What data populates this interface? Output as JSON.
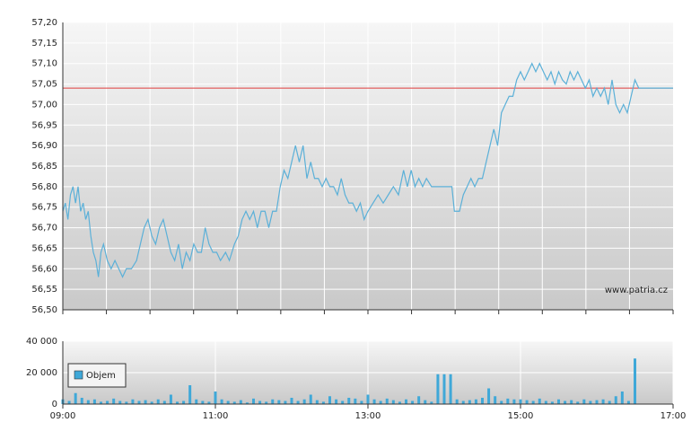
{
  "chart_data": [
    {
      "type": "line",
      "xlim": [
        "09:00",
        "17:00"
      ],
      "xgrid_divisions": 14,
      "ylim": [
        56.5,
        57.2
      ],
      "yticks": [
        {
          "value": 56.5,
          "label": "56,50"
        },
        {
          "value": 56.55,
          "label": "56,55"
        },
        {
          "value": 56.6,
          "label": "56,60"
        },
        {
          "value": 56.65,
          "label": "56,65"
        },
        {
          "value": 56.7,
          "label": "56,70"
        },
        {
          "value": 56.75,
          "label": "56,75"
        },
        {
          "value": 56.8,
          "label": "56,80"
        },
        {
          "value": 56.85,
          "label": "56,85"
        },
        {
          "value": 56.9,
          "label": "56,90"
        },
        {
          "value": 56.95,
          "label": "56,95"
        },
        {
          "value": 57.0,
          "label": "57,00"
        },
        {
          "value": 57.05,
          "label": "57,05"
        },
        {
          "value": 57.1,
          "label": "57,10"
        },
        {
          "value": 57.15,
          "label": "57,15"
        },
        {
          "value": 57.2,
          "label": "57,20"
        }
      ],
      "grid": true,
      "reference_line": {
        "value": 57.04,
        "color": "#e03c3c"
      },
      "watermark": "www.patria.cz",
      "series": [
        {
          "color": "#5bb0d8",
          "x": [
            "09:00",
            "09:02",
            "09:04",
            "09:06",
            "09:08",
            "09:10",
            "09:12",
            "09:14",
            "09:16",
            "09:18",
            "09:20",
            "09:22",
            "09:24",
            "09:26",
            "09:28",
            "09:30",
            "09:32",
            "09:35",
            "09:38",
            "09:41",
            "09:44",
            "09:47",
            "09:50",
            "09:54",
            "09:58",
            "10:01",
            "10:04",
            "10:07",
            "10:10",
            "10:13",
            "10:16",
            "10:19",
            "10:22",
            "10:25",
            "10:28",
            "10:31",
            "10:34",
            "10:37",
            "10:40",
            "10:43",
            "10:46",
            "10:49",
            "10:52",
            "10:55",
            "10:58",
            "11:01",
            "11:04",
            "11:08",
            "11:11",
            "11:15",
            "11:18",
            "11:21",
            "11:24",
            "11:27",
            "11:30",
            "11:33",
            "11:36",
            "11:39",
            "11:42",
            "11:45",
            "11:48",
            "11:51",
            "11:54",
            "11:57",
            "12:00",
            "12:03",
            "12:06",
            "12:09",
            "12:12",
            "12:15",
            "12:18",
            "12:21",
            "12:24",
            "12:27",
            "12:30",
            "12:33",
            "12:36",
            "12:39",
            "12:42",
            "12:45",
            "12:48",
            "12:51",
            "12:54",
            "12:57",
            "13:00",
            "13:04",
            "13:08",
            "13:12",
            "13:16",
            "13:20",
            "13:24",
            "13:28",
            "13:31",
            "13:34",
            "13:37",
            "13:40",
            "13:43",
            "13:46",
            "13:50",
            "13:54",
            "13:58",
            "14:02",
            "14:06",
            "14:08",
            "14:12",
            "14:15",
            "14:18",
            "14:21",
            "14:24",
            "14:27",
            "14:30",
            "14:33",
            "14:36",
            "14:39",
            "14:42",
            "14:45",
            "14:48",
            "14:51",
            "14:54",
            "14:57",
            "15:00",
            "15:03",
            "15:06",
            "15:09",
            "15:12",
            "15:15",
            "15:18",
            "15:21",
            "15:24",
            "15:27",
            "15:30",
            "15:33",
            "15:36",
            "15:39",
            "15:42",
            "15:45",
            "15:48",
            "15:51",
            "15:54",
            "15:57",
            "16:00",
            "16:03",
            "16:06",
            "16:09",
            "16:12",
            "16:15",
            "16:18",
            "16:21",
            "16:24",
            "16:27",
            "16:30",
            "16:33",
            "17:00"
          ],
          "values": [
            56.74,
            56.76,
            56.72,
            56.78,
            56.8,
            56.76,
            56.8,
            56.74,
            56.76,
            56.72,
            56.74,
            56.68,
            56.64,
            56.62,
            56.58,
            56.64,
            56.66,
            56.62,
            56.6,
            56.62,
            56.6,
            56.58,
            56.6,
            56.6,
            56.62,
            56.66,
            56.7,
            56.72,
            56.68,
            56.66,
            56.7,
            56.72,
            56.68,
            56.64,
            56.62,
            56.66,
            56.6,
            56.64,
            56.62,
            56.66,
            56.64,
            56.64,
            56.7,
            56.66,
            56.64,
            56.64,
            56.62,
            56.64,
            56.62,
            56.66,
            56.68,
            56.72,
            56.74,
            56.72,
            56.74,
            56.7,
            56.74,
            56.74,
            56.7,
            56.74,
            56.74,
            56.8,
            56.84,
            56.82,
            56.86,
            56.9,
            56.86,
            56.9,
            56.82,
            56.86,
            56.82,
            56.82,
            56.8,
            56.82,
            56.8,
            56.8,
            56.78,
            56.82,
            56.78,
            56.76,
            56.76,
            56.74,
            56.76,
            56.72,
            56.74,
            56.76,
            56.78,
            56.76,
            56.78,
            56.8,
            56.78,
            56.84,
            56.8,
            56.84,
            56.8,
            56.82,
            56.8,
            56.82,
            56.8,
            56.8,
            56.8,
            56.8,
            56.8,
            56.74,
            56.74,
            56.78,
            56.8,
            56.82,
            56.8,
            56.82,
            56.82,
            56.86,
            56.9,
            56.94,
            56.9,
            56.98,
            57.0,
            57.02,
            57.02,
            57.06,
            57.08,
            57.06,
            57.08,
            57.1,
            57.08,
            57.1,
            57.08,
            57.06,
            57.08,
            57.05,
            57.08,
            57.06,
            57.05,
            57.08,
            57.06,
            57.08,
            57.06,
            57.04,
            57.06,
            57.02,
            57.04,
            57.02,
            57.04,
            57.0,
            57.06,
            57.0,
            56.98,
            57.0,
            56.98,
            57.02,
            57.06,
            57.04,
            57.04
          ]
        }
      ]
    },
    {
      "type": "bar",
      "xlim": [
        "09:00",
        "17:00"
      ],
      "xticks": [
        "09:00",
        "11:00",
        "13:00",
        "15:00",
        "17:00"
      ],
      "ylim": [
        0,
        40000
      ],
      "yticks": [
        {
          "value": 0,
          "label": "0"
        },
        {
          "value": 20000,
          "label": "20 000"
        },
        {
          "value": 40000,
          "label": "40 000"
        }
      ],
      "grid": true,
      "legend": "upper left",
      "series": [
        {
          "name": "Objem",
          "color": "#3fa8d8",
          "x": [
            "09:00",
            "09:05",
            "09:10",
            "09:15",
            "09:20",
            "09:25",
            "09:30",
            "09:35",
            "09:40",
            "09:45",
            "09:50",
            "09:55",
            "10:00",
            "10:05",
            "10:10",
            "10:15",
            "10:20",
            "10:25",
            "10:30",
            "10:35",
            "10:40",
            "10:45",
            "10:50",
            "10:55",
            "11:00",
            "11:05",
            "11:10",
            "11:15",
            "11:20",
            "11:25",
            "11:30",
            "11:35",
            "11:40",
            "11:45",
            "11:50",
            "11:55",
            "12:00",
            "12:05",
            "12:10",
            "12:15",
            "12:20",
            "12:25",
            "12:30",
            "12:35",
            "12:40",
            "12:45",
            "12:50",
            "12:55",
            "13:00",
            "13:05",
            "13:10",
            "13:15",
            "13:20",
            "13:25",
            "13:30",
            "13:35",
            "13:40",
            "13:45",
            "13:50",
            "13:55",
            "14:00",
            "14:05",
            "14:10",
            "14:15",
            "14:20",
            "14:25",
            "14:30",
            "14:35",
            "14:40",
            "14:45",
            "14:50",
            "14:55",
            "15:00",
            "15:05",
            "15:10",
            "15:15",
            "15:20",
            "15:25",
            "15:30",
            "15:35",
            "15:40",
            "15:45",
            "15:50",
            "15:55",
            "16:00",
            "16:05",
            "16:10",
            "16:15",
            "16:20",
            "16:25",
            "16:30"
          ],
          "values": [
            3000,
            2000,
            7000,
            4000,
            2500,
            3000,
            1500,
            2000,
            3500,
            2000,
            1500,
            3000,
            2000,
            2500,
            1500,
            3000,
            2000,
            6000,
            1500,
            2000,
            12000,
            3000,
            2000,
            1500,
            8000,
            3000,
            2000,
            1500,
            2500,
            1000,
            3500,
            2000,
            1500,
            3000,
            2500,
            2000,
            4000,
            2000,
            3000,
            6000,
            2500,
            1500,
            5000,
            3000,
            2000,
            4000,
            3500,
            2000,
            6000,
            3000,
            2000,
            3500,
            2500,
            1500,
            3000,
            2000,
            5000,
            2500,
            1500,
            19000,
            19000,
            19000,
            3000,
            2000,
            2500,
            3000,
            4000,
            10000,
            5000,
            2000,
            3500,
            3000,
            3000,
            2500,
            2000,
            3500,
            2000,
            1500,
            3000,
            2000,
            2500,
            1500,
            3000,
            2000,
            2500,
            3000,
            2000,
            5000,
            8000,
            2000,
            29000
          ]
        }
      ]
    }
  ]
}
